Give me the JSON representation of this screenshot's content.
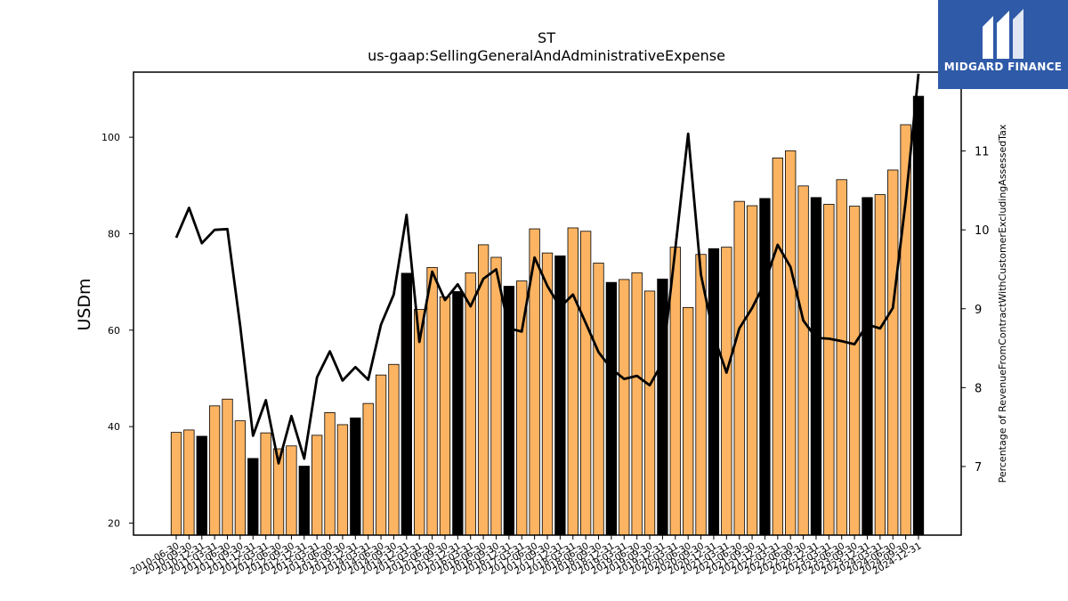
{
  "logo": {
    "text": "MIDGARD FINANCE"
  },
  "chart_data": {
    "type": "bar",
    "title": "ST",
    "subtitle": "us-gaap:SellingGeneralAndAdministrativeExpense",
    "ylabel": "USDm",
    "y2label": "Percentage of RevenueFromContractWithCustomerExcludingAssessedTax",
    "ylim": [
      17.5,
      113.5
    ],
    "y2lim": [
      6.13,
      12.0
    ],
    "yticks": [
      20,
      40,
      60,
      80,
      100
    ],
    "y2ticks": [
      7,
      8,
      9,
      10,
      11
    ],
    "colors": {
      "quarter": "#fdb462",
      "fiscal_year": "#000000",
      "line": "#000000"
    },
    "categories": [
      "2010-06-30",
      "2010-09-30",
      "2010-12-31",
      "2011-03-31",
      "2011-06-30",
      "2011-09-30",
      "2011-12-31",
      "2012-03-31",
      "2012-06-30",
      "2012-09-30",
      "2012-12-31",
      "2013-03-31",
      "2013-06-30",
      "2013-09-30",
      "2013-12-31",
      "2014-03-31",
      "2014-06-30",
      "2014-09-30",
      "2014-12-31",
      "2015-03-31",
      "2015-06-30",
      "2015-09-30",
      "2015-12-31",
      "2016-03-31",
      "2016-06-30",
      "2016-09-30",
      "2016-12-31",
      "2017-03-31",
      "2017-06-30",
      "2017-09-30",
      "2017-12-31",
      "2018-03-31",
      "2018-06-30",
      "2018-09-30",
      "2018-12-31",
      "2019-03-31",
      "2019-06-30",
      "2019-09-30",
      "2019-12-31",
      "2020-03-31",
      "2020-06-30",
      "2020-09-30",
      "2020-12-31",
      "2021-03-31",
      "2021-06-30",
      "2021-09-30",
      "2021-12-31",
      "2022-03-31",
      "2022-06-30",
      "2022-09-30",
      "2022-12-31",
      "2023-03-31",
      "2023-06-30",
      "2023-09-30",
      "2023-12-31",
      "2024-03-31",
      "2024-06-30",
      "2024-09-30",
      "2024-12-31"
    ],
    "series": [
      {
        "values": [
          38.8,
          39.3,
          38.0,
          44.3,
          45.7,
          41.2,
          33.4,
          38.7,
          35.4,
          36.0,
          31.8,
          38.2,
          42.9,
          40.4,
          41.8,
          44.8,
          50.7,
          52.9,
          71.8,
          64.3,
          73.0,
          66.9,
          68.0,
          71.9,
          77.7,
          75.1,
          69.1,
          70.2,
          81.0,
          76.0,
          75.4,
          81.2,
          80.5,
          73.9,
          69.9,
          70.5,
          71.9,
          68.1,
          70.6,
          77.2,
          64.7,
          75.7,
          76.9,
          77.2,
          86.7,
          85.8,
          87.3,
          95.7,
          97.2,
          89.9,
          87.5,
          86.1,
          91.2,
          85.7,
          87.5,
          88.1,
          93.2,
          102.6,
          108.5
        ],
        "fiscal_year_flags": [
          0,
          0,
          1,
          0,
          0,
          0,
          1,
          0,
          0,
          0,
          1,
          0,
          0,
          0,
          1,
          0,
          0,
          0,
          1,
          0,
          0,
          0,
          1,
          0,
          0,
          0,
          1,
          0,
          0,
          0,
          1,
          0,
          0,
          0,
          1,
          0,
          0,
          0,
          1,
          0,
          0,
          0,
          1,
          0,
          0,
          0,
          1,
          0,
          0,
          0,
          1,
          0,
          0,
          0,
          1,
          0,
          0,
          0,
          1
        ]
      },
      {
        "type": "line",
        "values": [
          9.9,
          10.28,
          9.83,
          10.0,
          10.01,
          8.78,
          7.39,
          7.84,
          7.04,
          7.64,
          7.1,
          8.13,
          8.46,
          8.09,
          8.26,
          8.1,
          8.8,
          9.18,
          10.19,
          8.58,
          9.47,
          9.11,
          9.31,
          9.03,
          9.38,
          9.5,
          8.75,
          8.71,
          9.65,
          9.29,
          9.02,
          9.18,
          8.82,
          8.45,
          8.24,
          8.11,
          8.15,
          8.03,
          8.32,
          9.76,
          11.22,
          9.43,
          8.66,
          8.19,
          8.75,
          9.01,
          9.33,
          9.81,
          9.53,
          8.85,
          8.63,
          8.62,
          8.59,
          8.55,
          8.8,
          8.75,
          9.01,
          10.36,
          11.98
        ]
      }
    ]
  }
}
